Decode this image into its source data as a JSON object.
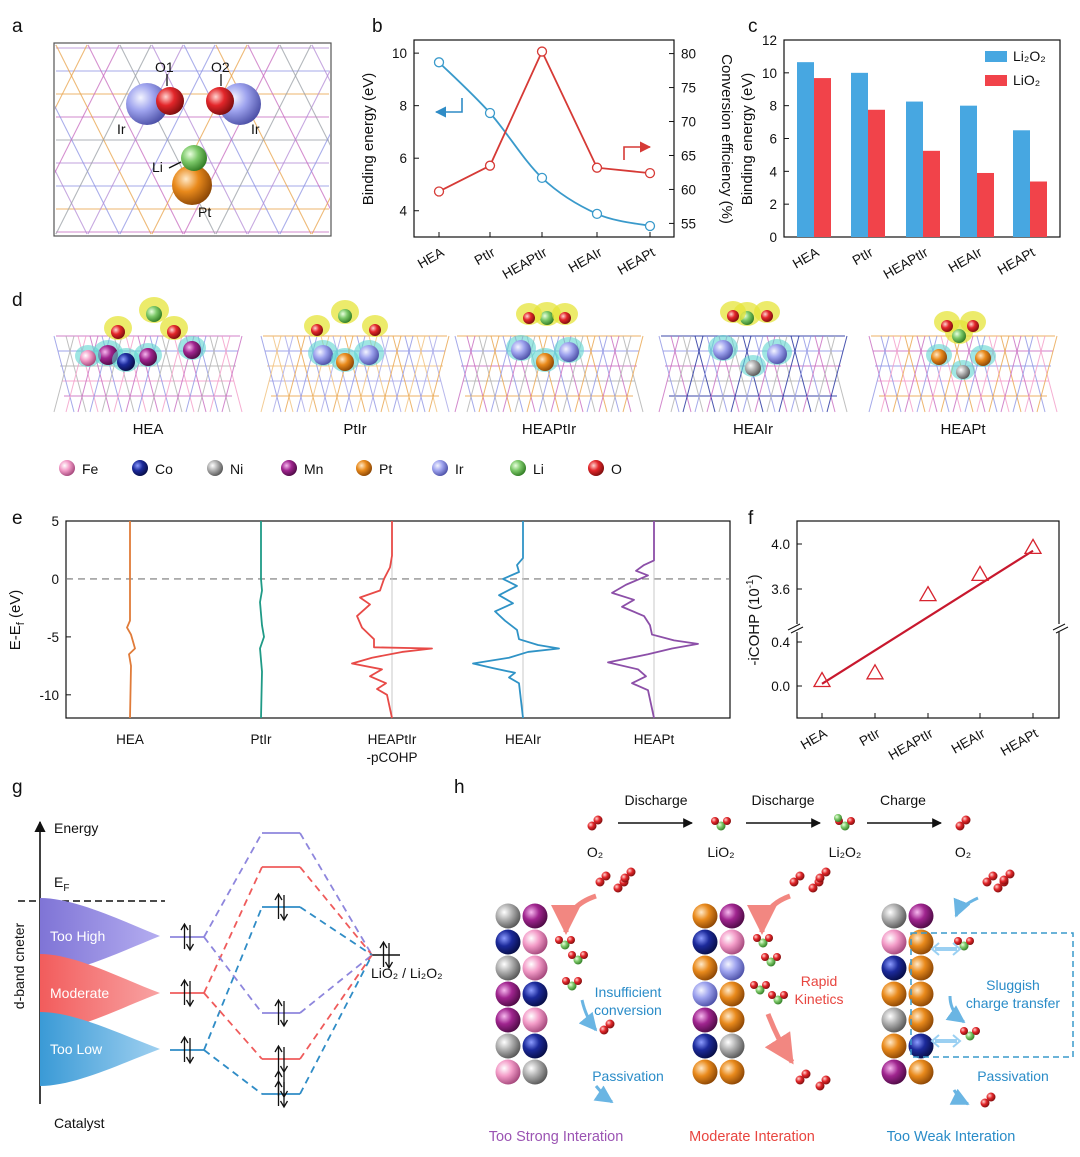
{
  "panel_labels": [
    "a",
    "b",
    "c",
    "d",
    "e",
    "f",
    "g",
    "h"
  ],
  "panel_a": {
    "atoms": [
      "O1",
      "O2",
      "Ir",
      "Ir",
      "Li",
      "Pt"
    ]
  },
  "chart_data": [
    {
      "panel": "b",
      "type": "line",
      "categories": [
        "HEA",
        "PtIr",
        "HEAPtIr",
        "HEAIr",
        "HEAPt"
      ],
      "ylabel": "Binding energy (eV)",
      "y2label": "Conversion efficiency (%)",
      "yticks": [
        "4",
        "6",
        "8",
        "10"
      ],
      "y2ticks": [
        "55",
        "60",
        "65",
        "70",
        "75",
        "80"
      ],
      "ylim": [
        3,
        10.5
      ],
      "y2lim": [
        53,
        82
      ],
      "series": [
        {
          "axis": "left",
          "color": "#3a9acb",
          "values": [
            9.65,
            7.72,
            5.25,
            3.88,
            3.42
          ]
        },
        {
          "axis": "right",
          "color": "#d63a36",
          "values": [
            59.7,
            63.5,
            80.3,
            63.2,
            62.4
          ]
        }
      ]
    },
    {
      "panel": "c",
      "type": "bar",
      "categories": [
        "HEA",
        "PtIr",
        "HEAPtIr",
        "HEAIr",
        "HEAPt"
      ],
      "ylabel": "Binding energy (eV)",
      "yticks": [
        "0",
        "2",
        "4",
        "6",
        "8",
        "10",
        "12"
      ],
      "ylim": [
        0,
        12
      ],
      "legend_position": "top-right",
      "series": [
        {
          "name": "Li₂O₂",
          "color": "#47a7e1",
          "values": [
            10.65,
            10.0,
            8.25,
            8.0,
            6.5
          ]
        },
        {
          "name": "LiO₂",
          "color": "#f1434a",
          "values": [
            9.68,
            7.75,
            5.25,
            3.9,
            3.38
          ]
        }
      ]
    },
    {
      "panel": "e",
      "type": "line",
      "categories": [
        "HEA",
        "PtIr",
        "HEAPtIr\n-pCOHP",
        "HEAIr",
        "HEAPt"
      ],
      "ylabel": "E-E_f (eV)",
      "yticks": [
        "5",
        "0",
        "-5",
        "-10"
      ],
      "ylim": [
        -12,
        5
      ],
      "colors": [
        "#e07b39",
        "#1f9a86",
        "#e84a47",
        "#2f93c6",
        "#8c4fa8"
      ]
    },
    {
      "panel": "f",
      "type": "scatter",
      "categories": [
        "HEA",
        "PtIr",
        "HEAPtIr",
        "HEAIr",
        "HEAPt"
      ],
      "ylabel": "-iCOHP (10⁻¹)",
      "yticks": [
        "0.0",
        "0.4",
        "3.6",
        "4.0"
      ],
      "values": [
        0.05,
        0.12,
        3.55,
        3.73,
        3.97
      ],
      "fit_color": "#c8182e",
      "marker_color": "#d7242f"
    }
  ],
  "panel_d": {
    "structures": [
      "HEA",
      "PtIr",
      "HEAPtIr",
      "HEAIr",
      "HEAPt"
    ],
    "legend": [
      {
        "label": "Fe",
        "color": "#f39cc8"
      },
      {
        "label": "Co",
        "color": "#1c2a9b"
      },
      {
        "label": "Ni",
        "color": "#a7a7a7"
      },
      {
        "label": "Mn",
        "color": "#a0258f"
      },
      {
        "label": "Pt",
        "color": "#e98a1c"
      },
      {
        "label": "Ir",
        "color": "#8e94e4"
      },
      {
        "label": "Li",
        "color": "#7dc96a"
      },
      {
        "label": "O",
        "color": "#e3262a"
      }
    ]
  },
  "panel_g": {
    "energy": "Energy",
    "fermi": "E",
    "fermi_sub": "F",
    "yaxis": "d-band cneter",
    "bands": [
      "Too High",
      "Moderate",
      "Too Low"
    ],
    "catalyst": "Catalyst",
    "adsorbate": "LiO₂ / Li₂O₂"
  },
  "panel_h": {
    "steps": [
      "Discharge",
      "Discharge",
      "Charge"
    ],
    "species": [
      "O₂",
      "LiO₂",
      "Li₂O₂",
      "O₂"
    ],
    "notes": [
      "Insufficient conversion",
      "Passivation",
      "Rapid Kinetics",
      "Sluggish charge transfer",
      "Passivation"
    ],
    "captions": [
      "Too Strong Interation",
      "Moderate Interation",
      "Too Weak Interation"
    ]
  }
}
